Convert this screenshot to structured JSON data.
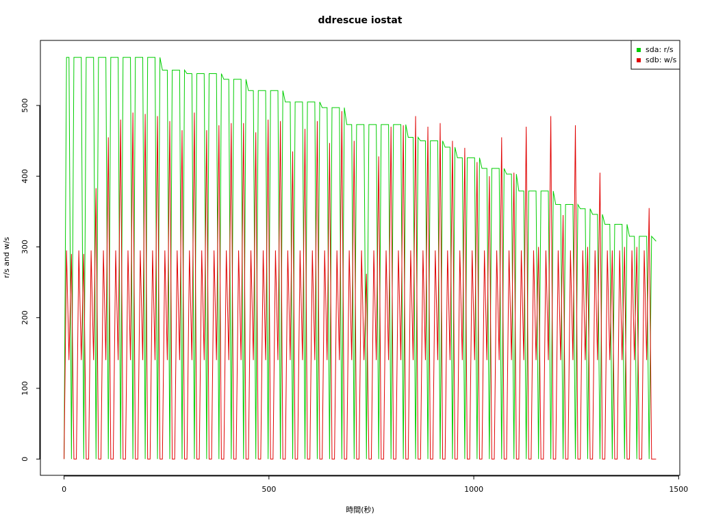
{
  "chart_data": {
    "type": "line",
    "title": "ddrescue iostat",
    "x_label": "時間(秒)",
    "y_label": "r/s and w/s",
    "xlim": [
      -57.8,
      1502.8
    ],
    "xticks": [
      0,
      500,
      1000,
      1500
    ],
    "ylim": [
      -23,
      592
    ],
    "yticks": [
      0,
      100,
      200,
      300,
      400,
      500
    ],
    "legend": "top-right",
    "x": [
      0,
      6,
      12,
      18,
      24,
      30,
      36,
      42,
      48,
      54,
      60,
      66,
      72,
      78,
      84,
      90,
      96,
      102,
      108,
      114,
      120,
      126,
      132,
      138,
      144,
      150,
      156,
      162,
      168,
      174,
      180,
      186,
      192,
      198,
      204,
      210,
      216,
      222,
      228,
      234,
      240,
      246,
      252,
      258,
      264,
      270,
      276,
      282,
      288,
      294,
      300,
      306,
      312,
      318,
      324,
      330,
      336,
      342,
      348,
      354,
      360,
      366,
      372,
      378,
      384,
      390,
      396,
      402,
      408,
      414,
      420,
      426,
      432,
      438,
      444,
      450,
      456,
      462,
      468,
      474,
      480,
      486,
      492,
      498,
      504,
      510,
      516,
      522,
      528,
      534,
      540,
      546,
      552,
      558,
      564,
      570,
      576,
      582,
      588,
      594,
      600,
      606,
      612,
      618,
      624,
      630,
      636,
      642,
      648,
      654,
      660,
      666,
      672,
      678,
      684,
      690,
      696,
      702,
      708,
      714,
      720,
      726,
      732,
      738,
      744,
      750,
      756,
      762,
      768,
      774,
      780,
      786,
      792,
      798,
      804,
      810,
      816,
      822,
      828,
      834,
      840,
      846,
      852,
      858,
      864,
      870,
      876,
      882,
      888,
      894,
      900,
      906,
      912,
      918,
      924,
      930,
      936,
      942,
      948,
      954,
      960,
      966,
      972,
      978,
      984,
      990,
      996,
      1002,
      1008,
      1014,
      1020,
      1026,
      1032,
      1038,
      1044,
      1050,
      1056,
      1062,
      1068,
      1074,
      1080,
      1086,
      1092,
      1098,
      1104,
      1110,
      1116,
      1122,
      1128,
      1134,
      1140,
      1146,
      1152,
      1158,
      1164,
      1170,
      1176,
      1182,
      1188,
      1194,
      1200,
      1206,
      1212,
      1218,
      1224,
      1230,
      1236,
      1242,
      1248,
      1254,
      1260,
      1266,
      1272,
      1278,
      1284,
      1290,
      1296,
      1302,
      1308,
      1314,
      1320,
      1326,
      1332,
      1338,
      1344,
      1350,
      1356,
      1362,
      1368,
      1374,
      1380,
      1386,
      1392,
      1398,
      1404,
      1410,
      1416,
      1422,
      1428,
      1434,
      1445
    ],
    "series": [
      {
        "name": "sda: r/s",
        "color": "#00cd00",
        "values": [
          0,
          568,
          568,
          0,
          568,
          568,
          568,
          568,
          0,
          568,
          568,
          568,
          568,
          0,
          568,
          568,
          568,
          568,
          0,
          568,
          568,
          568,
          568,
          0,
          568,
          568,
          568,
          568,
          0,
          568,
          568,
          568,
          568,
          0,
          568,
          568,
          568,
          568,
          0,
          568,
          550,
          550,
          550,
          0,
          550,
          550,
          550,
          550,
          0,
          550,
          545,
          545,
          545,
          0,
          545,
          545,
          545,
          545,
          0,
          545,
          545,
          545,
          545,
          0,
          545,
          537,
          537,
          537,
          0,
          537,
          537,
          537,
          537,
          0,
          537,
          521,
          521,
          521,
          0,
          521,
          521,
          521,
          521,
          0,
          521,
          521,
          521,
          521,
          0,
          521,
          505,
          505,
          505,
          0,
          505,
          505,
          505,
          505,
          0,
          505,
          505,
          505,
          505,
          0,
          505,
          497,
          497,
          497,
          0,
          497,
          497,
          497,
          497,
          0,
          497,
          473,
          473,
          473,
          0,
          473,
          473,
          473,
          473,
          0,
          473,
          473,
          473,
          473,
          0,
          473,
          473,
          473,
          473,
          0,
          473,
          473,
          473,
          473,
          0,
          473,
          455,
          455,
          455,
          0,
          455,
          450,
          450,
          450,
          0,
          450,
          450,
          450,
          450,
          0,
          450,
          441,
          441,
          441,
          0,
          441,
          426,
          426,
          426,
          0,
          426,
          426,
          426,
          426,
          0,
          426,
          411,
          411,
          411,
          0,
          411,
          411,
          411,
          411,
          0,
          411,
          403,
          403,
          403,
          0,
          403,
          379,
          379,
          379,
          0,
          379,
          379,
          379,
          379,
          0,
          379,
          379,
          379,
          379,
          0,
          379,
          360,
          360,
          360,
          0,
          360,
          360,
          360,
          360,
          0,
          360,
          354,
          354,
          354,
          0,
          354,
          346,
          346,
          346,
          0,
          346,
          332,
          332,
          332,
          0,
          332,
          332,
          332,
          332,
          0,
          332,
          315,
          315,
          315,
          0,
          315,
          315,
          315,
          315,
          0,
          315,
          308
        ]
      },
      {
        "name": "sdb: w/s",
        "color": "#e00000",
        "values": [
          0,
          295,
          140,
          290,
          0,
          0,
          295,
          140,
          290,
          0,
          0,
          295,
          140,
          383,
          0,
          0,
          295,
          140,
          455,
          0,
          0,
          295,
          140,
          480,
          0,
          0,
          295,
          140,
          490,
          0,
          0,
          295,
          140,
          488,
          0,
          0,
          295,
          140,
          485,
          0,
          0,
          295,
          140,
          478,
          0,
          0,
          295,
          140,
          465,
          0,
          0,
          295,
          140,
          490,
          0,
          0,
          295,
          140,
          465,
          0,
          0,
          295,
          140,
          472,
          0,
          0,
          295,
          140,
          475,
          0,
          0,
          295,
          140,
          475,
          0,
          0,
          295,
          140,
          462,
          0,
          0,
          295,
          140,
          480,
          0,
          0,
          295,
          140,
          478,
          0,
          0,
          295,
          140,
          435,
          0,
          0,
          295,
          140,
          467,
          0,
          0,
          295,
          140,
          478,
          0,
          0,
          295,
          140,
          447,
          0,
          0,
          295,
          140,
          492,
          0,
          0,
          295,
          140,
          450,
          0,
          0,
          295,
          140,
          262,
          0,
          0,
          295,
          140,
          428,
          0,
          0,
          295,
          140,
          470,
          0,
          0,
          295,
          140,
          472,
          0,
          0,
          295,
          140,
          485,
          0,
          0,
          295,
          140,
          470,
          0,
          0,
          295,
          140,
          475,
          0,
          0,
          295,
          140,
          450,
          0,
          0,
          295,
          140,
          440,
          0,
          0,
          295,
          140,
          420,
          0,
          0,
          295,
          140,
          400,
          0,
          0,
          295,
          140,
          455,
          0,
          0,
          295,
          140,
          405,
          0,
          0,
          295,
          140,
          470,
          0,
          0,
          295,
          140,
          300,
          0,
          0,
          295,
          140,
          485,
          0,
          0,
          295,
          140,
          345,
          0,
          0,
          295,
          140,
          472,
          0,
          0,
          295,
          140,
          300,
          0,
          0,
          295,
          140,
          405,
          0,
          0,
          295,
          140,
          295,
          0,
          0,
          295,
          140,
          300,
          0,
          0,
          295,
          140,
          300,
          0,
          0,
          295,
          140,
          355,
          0,
          0
        ]
      }
    ]
  }
}
